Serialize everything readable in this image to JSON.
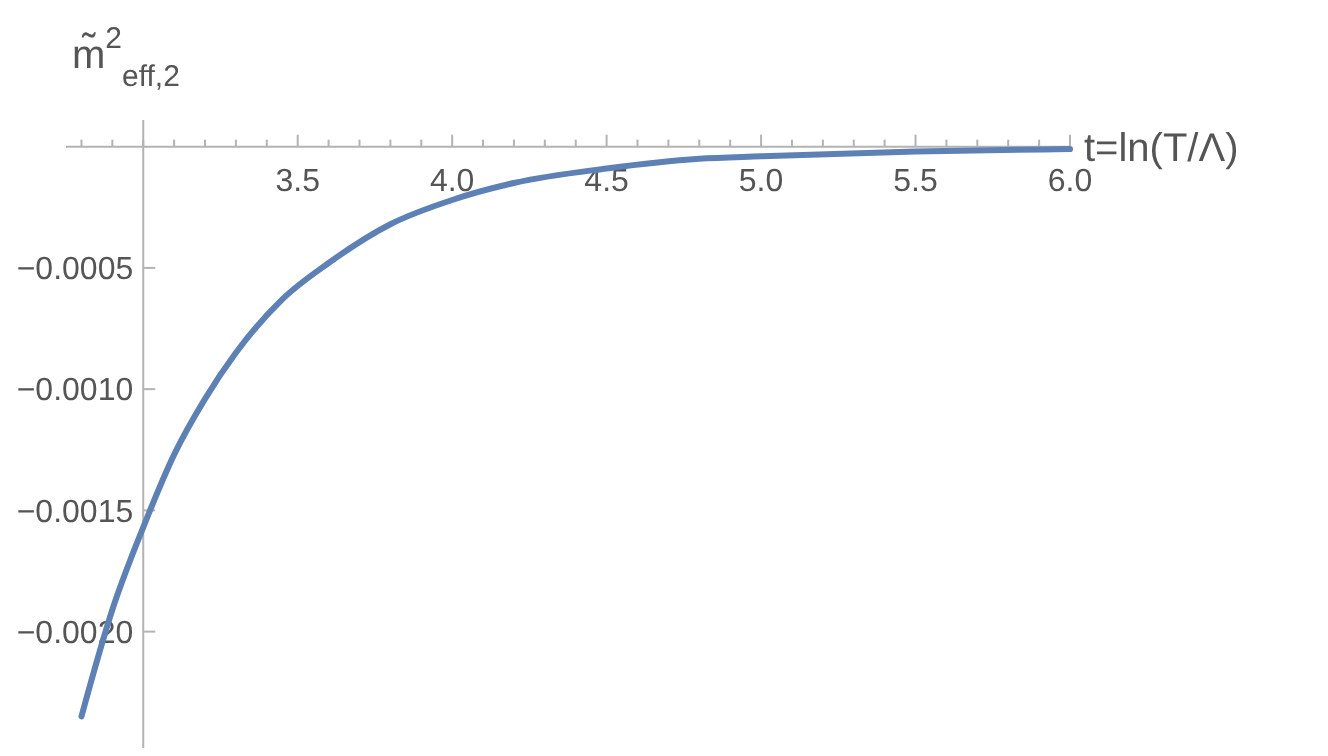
{
  "chart_data": {
    "type": "line",
    "xlabel": "t=ln(T/Λ)",
    "ylabel": "m̃$^{2}$$_{eff,2}$",
    "x": [
      2.8,
      2.9,
      3.0,
      3.1,
      3.2,
      3.3,
      3.45,
      3.6,
      3.8,
      4.0,
      4.2,
      4.5,
      4.8,
      5.0,
      5.5,
      6.0
    ],
    "series": [
      {
        "color": "#5e81b5",
        "values": [
          -0.00235,
          -0.00191,
          -0.00157,
          -0.00127,
          -0.00104,
          -0.00085,
          -0.00063,
          -0.00048,
          -0.00032,
          -0.00022,
          -0.00015,
          -9e-05,
          -5e-05,
          -4e-05,
          -2e-05,
          -1e-05
        ]
      }
    ],
    "xlim": [
      2.75,
      6.0
    ],
    "xticks": [
      {
        "value": 2.8,
        "label": null
      },
      {
        "value": 2.9,
        "label": null
      },
      {
        "value": 3.0,
        "label": null
      },
      {
        "value": 3.1,
        "label": null
      },
      {
        "value": 3.2,
        "label": null
      },
      {
        "value": 3.3,
        "label": null
      },
      {
        "value": 3.4,
        "label": null
      },
      {
        "value": 3.5,
        "label": "3.5"
      },
      {
        "value": 3.6,
        "label": null
      },
      {
        "value": 3.7,
        "label": null
      },
      {
        "value": 3.8,
        "label": null
      },
      {
        "value": 3.9,
        "label": null
      },
      {
        "value": 4.0,
        "label": "4.0"
      },
      {
        "value": 4.1,
        "label": null
      },
      {
        "value": 4.2,
        "label": null
      },
      {
        "value": 4.3,
        "label": null
      },
      {
        "value": 4.4,
        "label": null
      },
      {
        "value": 4.5,
        "label": "4.5"
      },
      {
        "value": 4.6,
        "label": null
      },
      {
        "value": 4.7,
        "label": null
      },
      {
        "value": 4.8,
        "label": null
      },
      {
        "value": 4.9,
        "label": null
      },
      {
        "value": 5.0,
        "label": "5.0"
      },
      {
        "value": 5.1,
        "label": null
      },
      {
        "value": 5.2,
        "label": null
      },
      {
        "value": 5.3,
        "label": null
      },
      {
        "value": 5.4,
        "label": null
      },
      {
        "value": 5.5,
        "label": "5.5"
      },
      {
        "value": 5.6,
        "label": null
      },
      {
        "value": 5.7,
        "label": null
      },
      {
        "value": 5.8,
        "label": null
      },
      {
        "value": 5.9,
        "label": null
      },
      {
        "value": 6.0,
        "label": "6.0"
      }
    ],
    "ylim": [
      -0.00248,
      0.00011
    ],
    "yticks": [
      {
        "value": -0.0005,
        "label": "−0.0005"
      },
      {
        "value": -0.001,
        "label": "−0.0010"
      },
      {
        "value": -0.0015,
        "label": "−0.0015"
      },
      {
        "value": -0.002,
        "label": "−0.0020"
      }
    ],
    "grid": false
  }
}
